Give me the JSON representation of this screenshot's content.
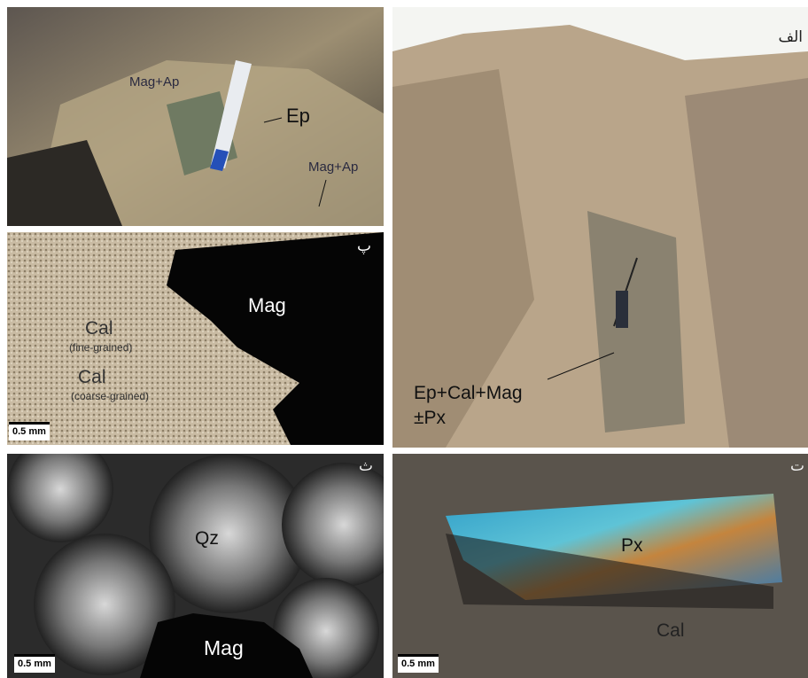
{
  "panels": [
    {
      "annotations": [
        "Mag+Ap",
        "Ep",
        "Mag+Ap"
      ]
    },
    {
      "label": "الف",
      "annotations": [
        "Ep+Cal+Mag",
        "±Px"
      ]
    },
    {
      "label": "پ",
      "annotations": [
        "Mag",
        "Cal",
        "(fine-grained)",
        "Cal",
        "(coarse-grained)"
      ],
      "scale_bar": "0.5 mm"
    },
    {
      "label": "ث",
      "annotations": [
        "Qz",
        "Mag"
      ],
      "scale_bar": "0.5 mm"
    },
    {
      "label": "ت",
      "annotations": [
        "Px",
        "Cal"
      ],
      "scale_bar": "0.5 mm"
    }
  ]
}
